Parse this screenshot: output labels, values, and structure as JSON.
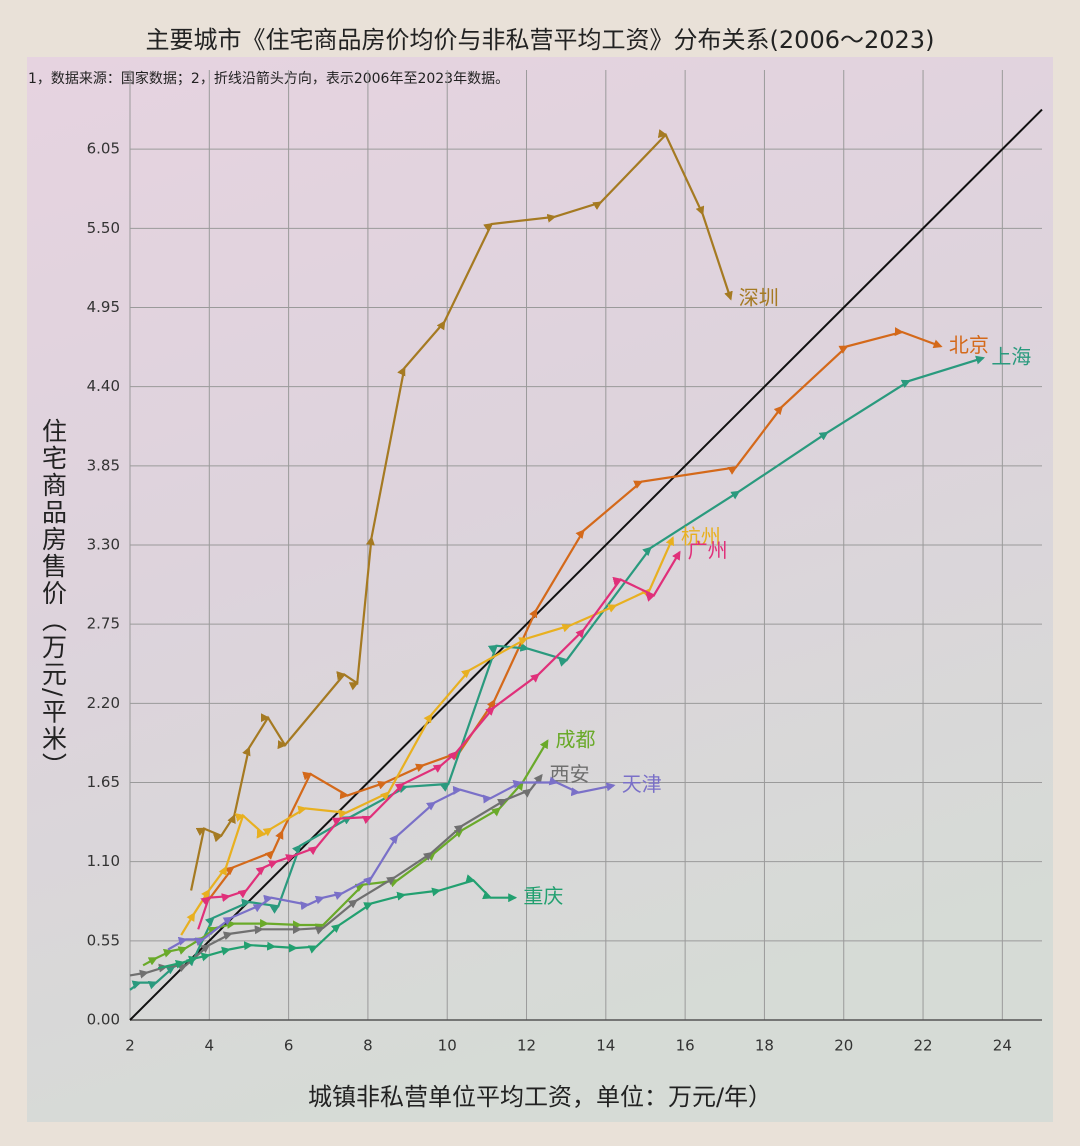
{
  "chart_data": {
    "type": "line",
    "title": "主要城市《住宅商品房价均价与非私营平均工资》分布关系(2006～2023)",
    "subtitle": "1，数据来源：国家数据；2，折线沿箭头方向，表示2006年至2023年数据。",
    "x_label": "城镇非私营单位平均工资，单位：万元/年）",
    "y_label": "住宅商品房售价（万元/平米）",
    "xlim": [
      2,
      25
    ],
    "ylim": [
      0,
      6.6
    ],
    "xticks": [
      2,
      4,
      6,
      8,
      10,
      12,
      14,
      16,
      18,
      20,
      22,
      24
    ],
    "yticks": [
      {
        "value": 0,
        "label": "0.00"
      },
      0.55,
      {
        "value": 1.1,
        "label": "1.10"
      },
      1.65,
      {
        "value": 2.2,
        "label": "2.20"
      },
      2.75,
      {
        "value": 3.3,
        "label": "3.30"
      },
      3.85,
      {
        "value": 4.4,
        "label": "4.40"
      },
      4.95,
      {
        "value": 5.5,
        "label": "5.50"
      },
      6.05
    ],
    "grid": true,
    "reference_line": {
      "x": [
        2,
        25
      ],
      "values": [
        0,
        6.325
      ],
      "color": "#111111"
    },
    "series": [
      {
        "name": "深圳",
        "color": "#a57a22",
        "x": [
          3.54,
          3.87,
          4.3,
          4.63,
          5.0,
          5.48,
          5.91,
          7.4,
          7.73,
          8.09,
          8.92,
          9.93,
          11.12,
          12.71,
          13.87,
          15.51,
          16.44,
          17.15
        ],
        "values": [
          0.9,
          1.33,
          1.28,
          1.42,
          1.89,
          2.1,
          1.91,
          2.4,
          2.34,
          3.35,
          4.53,
          4.85,
          5.53,
          5.58,
          5.68,
          6.15,
          5.6,
          5.01
        ]
      },
      {
        "name": "北京",
        "color": "#d4691a",
        "x": [
          3.97,
          4.6,
          5.61,
          5.84,
          6.55,
          7.48,
          8.44,
          9.4,
          10.31,
          11.19,
          12.25,
          13.44,
          14.9,
          17.28,
          18.44,
          20.08,
          21.47,
          22.45
        ],
        "values": [
          0.83,
          1.06,
          1.17,
          1.31,
          1.71,
          1.56,
          1.65,
          1.77,
          1.86,
          2.22,
          2.85,
          3.4,
          3.74,
          3.84,
          4.26,
          4.68,
          4.78,
          4.68
        ]
      },
      {
        "name": "上海",
        "color": "#2a9a7e",
        "x": [
          2.0,
          2.25,
          2.66,
          3.11,
          3.62,
          4.1,
          5.0,
          5.74,
          6.29,
          7.56,
          8.97,
          10.03,
          11.24,
          12.03,
          13.01,
          15.13,
          17.35,
          19.58,
          21.65,
          23.52
        ],
        "values": [
          0.21,
          0.26,
          0.26,
          0.37,
          0.43,
          0.71,
          0.82,
          0.79,
          1.21,
          1.41,
          1.62,
          1.64,
          2.6,
          2.58,
          2.5,
          3.28,
          3.67,
          4.08,
          4.44,
          4.6
        ]
      },
      {
        "name": "杭州",
        "color": "#e8b020",
        "x": [
          3.29,
          3.62,
          3.99,
          4.42,
          4.85,
          5.38,
          5.56,
          6.42,
          7.45,
          8.52,
          9.6,
          10.56,
          12.0,
          13.09,
          14.25,
          15.11,
          15.69
        ],
        "values": [
          0.59,
          0.74,
          0.9,
          1.06,
          1.42,
          1.29,
          1.33,
          1.47,
          1.44,
          1.58,
          2.12,
          2.43,
          2.65,
          2.74,
          2.88,
          2.99,
          3.35
        ]
      },
      {
        "name": "广州",
        "color": "#e0307a",
        "x": [
          3.72,
          3.99,
          4.5,
          4.93,
          5.38,
          5.69,
          6.12,
          6.7,
          7.3,
          8.06,
          8.89,
          9.85,
          10.23,
          11.17,
          12.3,
          13.44,
          14.37,
          15.21,
          15.86
        ],
        "values": [
          0.63,
          0.85,
          0.86,
          0.9,
          1.06,
          1.1,
          1.14,
          1.2,
          1.4,
          1.41,
          1.64,
          1.77,
          1.86,
          2.17,
          2.4,
          2.71,
          3.06,
          2.95,
          3.25
        ]
      },
      {
        "name": "成都",
        "color": "#6aaa2a",
        "x": [
          2.33,
          2.66,
          3.04,
          3.41,
          3.82,
          4.17,
          4.63,
          5.46,
          6.29,
          6.87,
          7.88,
          8.74,
          9.68,
          10.38,
          11.32,
          11.9,
          12.53
        ],
        "values": [
          0.38,
          0.43,
          0.48,
          0.5,
          0.57,
          0.64,
          0.67,
          0.67,
          0.66,
          0.66,
          0.94,
          0.97,
          1.16,
          1.32,
          1.47,
          1.65,
          1.94
        ]
      },
      {
        "name": "西安",
        "color": "#707070",
        "x": [
          2.0,
          2.43,
          2.91,
          3.41,
          3.99,
          4.55,
          5.33,
          6.29,
          6.87,
          7.71,
          8.67,
          9.6,
          10.38,
          11.47,
          12.1,
          12.38
        ],
        "values": [
          0.31,
          0.33,
          0.37,
          0.38,
          0.52,
          0.6,
          0.63,
          0.63,
          0.64,
          0.83,
          0.99,
          1.16,
          1.35,
          1.53,
          1.6,
          1.7
        ]
      },
      {
        "name": "天津",
        "color": "#7a70c8",
        "x": [
          2.96,
          3.41,
          3.84,
          4.55,
          5.31,
          5.56,
          6.49,
          6.87,
          7.35,
          8.09,
          8.74,
          9.68,
          10.33,
          11.09,
          11.85,
          12.76,
          13.31,
          14.2
        ],
        "values": [
          0.49,
          0.56,
          0.56,
          0.71,
          0.8,
          0.85,
          0.8,
          0.85,
          0.88,
          0.99,
          1.28,
          1.51,
          1.6,
          1.54,
          1.65,
          1.65,
          1.58,
          1.63
        ]
      },
      {
        "name": "重庆",
        "color": "#22a070",
        "x": [
          2.71,
          3.34,
          3.67,
          3.99,
          4.5,
          5.06,
          5.64,
          6.19,
          6.7,
          7.28,
          8.09,
          8.92,
          9.8,
          10.66,
          11.09,
          11.72
        ],
        "values": [
          0.36,
          0.4,
          0.43,
          0.45,
          0.49,
          0.52,
          0.51,
          0.5,
          0.51,
          0.66,
          0.81,
          0.87,
          0.9,
          0.97,
          0.85,
          0.85
        ]
      }
    ]
  }
}
